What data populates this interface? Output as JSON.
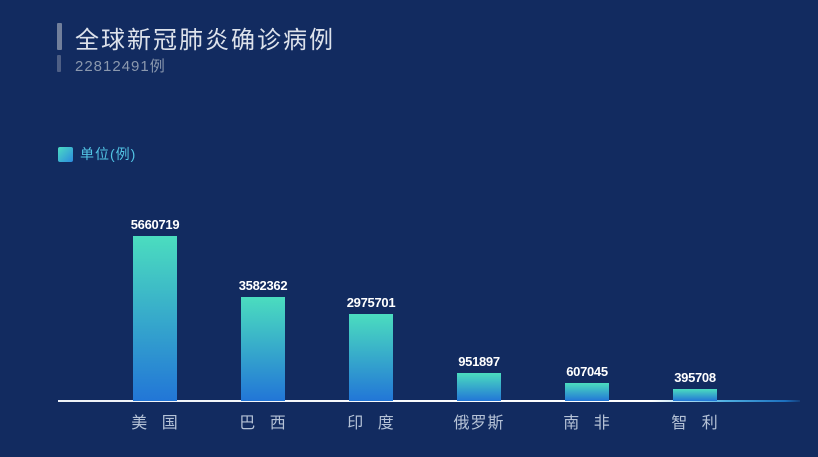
{
  "header": {
    "title": "全球新冠肺炎确诊病例",
    "subtitle": "22812491例"
  },
  "legend": {
    "label": "单位(例)"
  },
  "colors": {
    "background": "#122b60",
    "bar_gradient_top": "#4bddbf",
    "bar_gradient_bottom": "#2276d7",
    "legend_text": "#52c4e4",
    "title_text": "#dde2eb",
    "subtitle_text": "#8b98ae",
    "axis_line": "#ffffff",
    "axis_line_end": "#1c6fbe",
    "value_label": "#ffffff",
    "category_label": "#b5c2d6"
  },
  "chart_data": {
    "type": "bar",
    "title": "全球新冠肺炎确诊病例",
    "subtitle": "22812491例",
    "legend_entries": [
      "单位(例)"
    ],
    "legend_position": "top-left",
    "categories": [
      "美 国",
      "巴 西",
      "印 度",
      "俄罗斯",
      "南 非",
      "智 利"
    ],
    "values": [
      5660719,
      3582362,
      2975701,
      951897,
      607045,
      395708
    ],
    "value_labels_shown": true,
    "xlabel": "",
    "ylabel": "单位(例)",
    "ylim": [
      0,
      5660719
    ],
    "grid": false,
    "y_axis_ticks_shown": false,
    "bar_gradient": [
      "#4bddbf",
      "#2276d7"
    ]
  }
}
